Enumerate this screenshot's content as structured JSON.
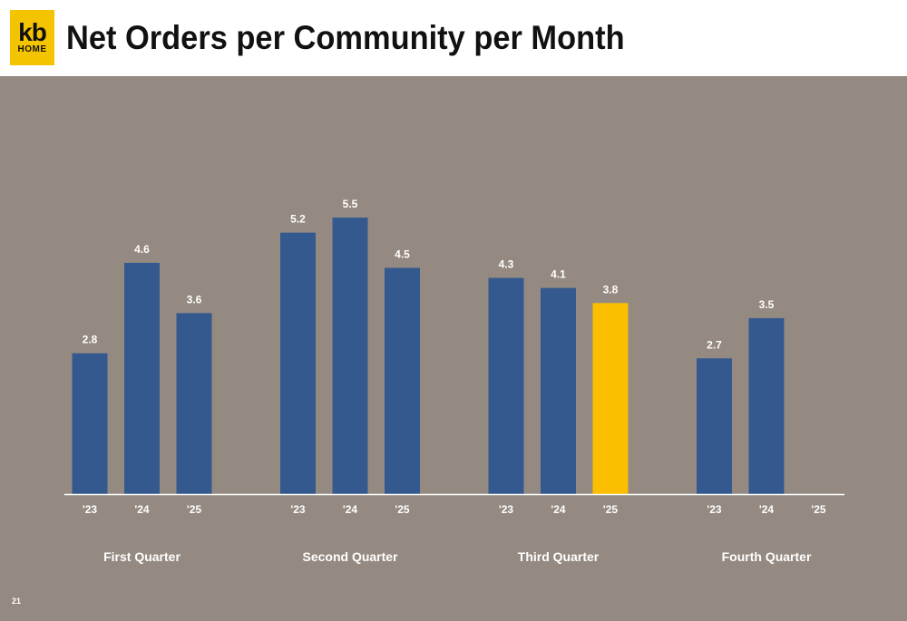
{
  "header": {
    "title": "Net Orders per Community per Month",
    "logo_top": "kb",
    "logo_bottom": "HOME"
  },
  "page_number": "21",
  "colors": {
    "background": "#948a81",
    "bar": "#33598e",
    "highlight": "#fcbf00",
    "axis": "#ffffff",
    "text": "#ffffff",
    "logo": "#f5c400"
  },
  "chart_data": {
    "type": "bar",
    "title": "Net Orders per Community per Month",
    "xlabel": "",
    "ylabel": "",
    "ylim": [
      0,
      6
    ],
    "grid": false,
    "groups": [
      {
        "name": "First Quarter",
        "categories": [
          "'23",
          "'24",
          "'25"
        ],
        "values": [
          2.8,
          4.6,
          3.6
        ],
        "labels": [
          "2.8",
          "4.6",
          "3.6"
        ]
      },
      {
        "name": "Second Quarter",
        "categories": [
          "'23",
          "'24",
          "'25"
        ],
        "values": [
          5.2,
          5.5,
          4.5
        ],
        "labels": [
          "5.2",
          "5.5",
          "4.5"
        ]
      },
      {
        "name": "Third Quarter",
        "categories": [
          "'23",
          "'24",
          "'25"
        ],
        "values": [
          4.3,
          4.1,
          3.8
        ],
        "labels": [
          "4.3",
          "4.1",
          "3.8"
        ],
        "highlight_index": 2
      },
      {
        "name": "Fourth Quarter",
        "categories": [
          "'23",
          "'24",
          "'25"
        ],
        "values": [
          2.7,
          3.5,
          null
        ],
        "labels": [
          "2.7",
          "3.5",
          ""
        ]
      }
    ]
  }
}
